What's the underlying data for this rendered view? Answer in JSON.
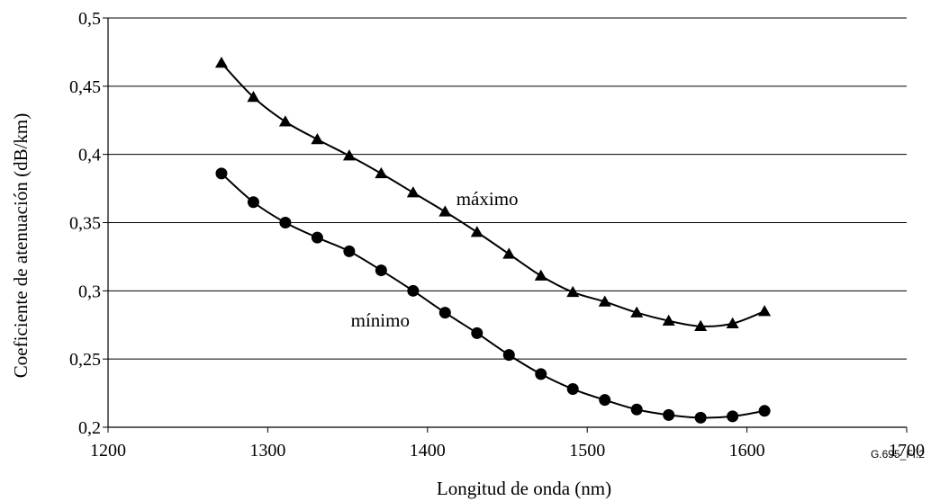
{
  "chart_data": {
    "type": "line",
    "title": "",
    "xlabel": "Longitud de onda (nm)",
    "ylabel": "Coeficiente de atenuación (dB/km)",
    "xlim": [
      1200,
      1700
    ],
    "ylim": [
      0.2,
      0.5
    ],
    "x_ticks": [
      1200,
      1300,
      1400,
      1500,
      1600,
      1700
    ],
    "x_tick_labels": [
      "1200",
      "1300",
      "1400",
      "1500",
      "1600",
      "1700"
    ],
    "y_ticks": [
      0.2,
      0.25,
      0.3,
      0.35,
      0.4,
      0.45,
      0.5
    ],
    "y_tick_labels": [
      "0,2",
      "0,25",
      "0,3",
      "0,35",
      "0,4",
      "0,45",
      "0,5"
    ],
    "grid": "horizontal",
    "legend": "none",
    "series": [
      {
        "name": "máximo",
        "marker": "triangle",
        "color": "#000000",
        "x": [
          1271,
          1291,
          1311,
          1331,
          1351,
          1371,
          1391,
          1411,
          1431,
          1451,
          1471,
          1491,
          1511,
          1531,
          1551,
          1571,
          1591,
          1611
        ],
        "y": [
          0.467,
          0.442,
          0.424,
          0.411,
          0.399,
          0.386,
          0.372,
          0.358,
          0.343,
          0.327,
          0.311,
          0.299,
          0.292,
          0.284,
          0.278,
          0.274,
          0.276,
          0.285
        ]
      },
      {
        "name": "mínimo",
        "marker": "circle",
        "color": "#000000",
        "x": [
          1271,
          1291,
          1311,
          1331,
          1351,
          1371,
          1391,
          1411,
          1431,
          1451,
          1471,
          1491,
          1511,
          1531,
          1551,
          1571,
          1591,
          1611
        ],
        "y": [
          0.386,
          0.365,
          0.35,
          0.339,
          0.329,
          0.315,
          0.3,
          0.284,
          0.269,
          0.253,
          0.239,
          0.228,
          0.22,
          0.213,
          0.209,
          0.207,
          0.208,
          0.212
        ]
      }
    ],
    "annotations": [
      {
        "text": "máximo",
        "x": 1418,
        "y": 0.363
      },
      {
        "text": "mínimo",
        "x": 1352,
        "y": 0.274
      }
    ],
    "figure_code": "G.695_FI.2"
  }
}
